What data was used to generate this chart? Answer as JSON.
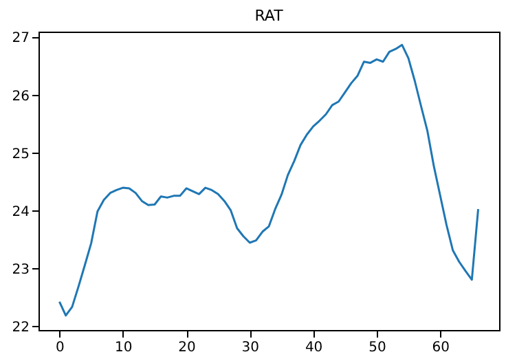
{
  "chart_data": {
    "type": "line",
    "title": "RAT",
    "x": [
      0,
      1,
      2,
      3,
      4,
      5,
      6,
      7,
      8,
      9,
      10,
      11,
      12,
      13,
      14,
      15,
      16,
      17,
      18,
      19,
      20,
      21,
      22,
      23,
      24,
      25,
      26,
      27,
      28,
      29,
      30,
      31,
      32,
      33,
      34,
      35,
      36,
      37,
      38,
      39,
      40,
      41,
      42,
      43,
      44,
      45,
      46,
      47,
      48,
      49,
      50,
      51,
      52,
      53,
      54,
      55,
      56,
      57,
      58,
      59,
      60,
      61,
      62,
      63,
      64,
      65,
      66
    ],
    "series": [
      {
        "color": "#1f77b4",
        "values": [
          22.43,
          22.19,
          22.34,
          22.69,
          23.06,
          23.44,
          23.99,
          24.19,
          24.31,
          24.36,
          24.4,
          24.39,
          24.31,
          24.17,
          24.1,
          24.11,
          24.25,
          24.23,
          24.26,
          24.26,
          24.39,
          24.34,
          24.29,
          24.4,
          24.36,
          24.29,
          24.17,
          24.01,
          23.7,
          23.56,
          23.45,
          23.49,
          23.64,
          23.73,
          24.03,
          24.28,
          24.62,
          24.86,
          25.14,
          25.32,
          25.46,
          25.56,
          25.67,
          25.83,
          25.89,
          26.05,
          26.21,
          26.34,
          26.58,
          26.56,
          26.62,
          26.58,
          26.75,
          26.8,
          26.87,
          26.64,
          26.25,
          25.81,
          25.38,
          24.78,
          24.27,
          23.76,
          23.32,
          23.12,
          22.96,
          22.81,
          24.03
        ]
      }
    ],
    "xlim": [
      -3.3,
      69.3
    ],
    "ylim": [
      21.94,
      27.1
    ],
    "xticks": [
      0,
      10,
      20,
      30,
      40,
      50,
      60
    ],
    "yticks": [
      22,
      23,
      24,
      25,
      26,
      27
    ],
    "grid": false
  }
}
